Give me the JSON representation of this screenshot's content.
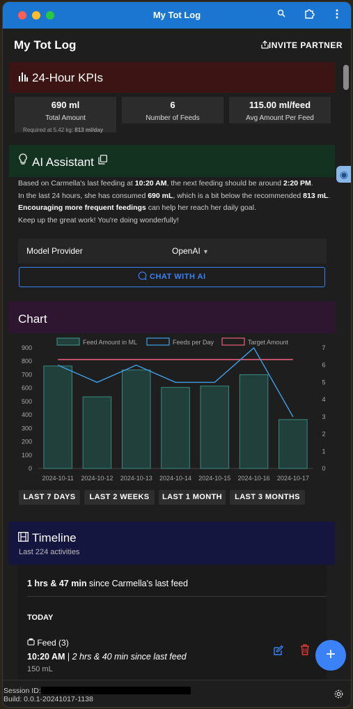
{
  "window": {
    "title": "My Tot Log"
  },
  "appbar": {
    "title": "My Tot Log",
    "invite_label": "INVITE PARTNER"
  },
  "kpis": {
    "title": "24-Hour KPIs",
    "items": [
      {
        "value": "690 ml",
        "label": "Total Amount"
      },
      {
        "value": "6",
        "label": "Number of Feeds"
      },
      {
        "value": "115.00 ml/feed",
        "label": "Avg Amount Per Feed"
      }
    ],
    "required_prefix": "Required at 5.42 kg: ",
    "required_value": "813 ml/day"
  },
  "ai": {
    "title": "AI Assistant",
    "p1_a": "Based on Carmella's last feeding at ",
    "p1_b": "10:20 AM",
    "p1_c": ", the next feeding should be around ",
    "p1_d": "2:20 PM",
    "p1_e": ".",
    "p2_a": "In the last 24 hours, she has consumed ",
    "p2_b": "690 mL",
    "p2_c": ", which is a bit below the recommended ",
    "p2_d": "813 mL",
    "p2_e": ". ",
    "p2_f": "Encouraging more frequent feedings",
    "p2_g": " can help her reach her daily goal.",
    "p3": "Keep up the great work! You're doing wonderfully!",
    "model_label": "Model Provider",
    "model_value": "OpenAI",
    "chat_label": "CHAT WITH AI"
  },
  "chart_section": {
    "title": "Chart",
    "ranges": [
      "LAST 7 DAYS",
      "LAST 2 WEEKS",
      "LAST 1 MONTH",
      "LAST 3 MONTHS"
    ]
  },
  "chart_data": {
    "type": "bar",
    "categories": [
      "2024-10-11",
      "2024-10-12",
      "2024-10-13",
      "2024-10-14",
      "2024-10-15",
      "2024-10-16",
      "2024-10-17"
    ],
    "series": [
      {
        "name": "Feed Amount in ML",
        "type": "bar",
        "axis": "left",
        "values": [
          765,
          535,
          735,
          605,
          615,
          700,
          365
        ]
      },
      {
        "name": "Feeds per Day",
        "type": "line",
        "axis": "right",
        "values": [
          6,
          5,
          6,
          5,
          5,
          7,
          3
        ]
      },
      {
        "name": "Target Amount",
        "type": "line",
        "axis": "left",
        "values": [
          813,
          813,
          813,
          813,
          813,
          813,
          813
        ]
      }
    ],
    "ylim_left": [
      0,
      900
    ],
    "yticks_left": [
      0,
      100,
      200,
      300,
      400,
      500,
      600,
      700,
      800,
      900
    ],
    "ylim_right": [
      0,
      7
    ],
    "yticks_right": [
      0,
      1,
      2,
      3,
      4,
      5,
      6,
      7
    ],
    "legend": "top-center",
    "colors": {
      "bar_fill": "#213f3b",
      "bar_stroke": "#3a8a80",
      "feeds_line": "#3fa0e8",
      "target_line": "#e8607a"
    }
  },
  "timeline": {
    "title": "Timeline",
    "subtitle": "Last 224 activities",
    "since_bold": "1 hrs & 47 min",
    "since_rest": " since Carmella's last feed",
    "today_label": "TODAY",
    "feed_title": "Feed (3)",
    "feed_time": "10:20 AM",
    "feed_sep": " | ",
    "feed_since": "2 hrs & 40 min since last feed",
    "feed_amount": "150 mL"
  },
  "footer": {
    "session_label": "Session ID:",
    "build_label": "Build: 0.0.1-20241017-1138"
  }
}
